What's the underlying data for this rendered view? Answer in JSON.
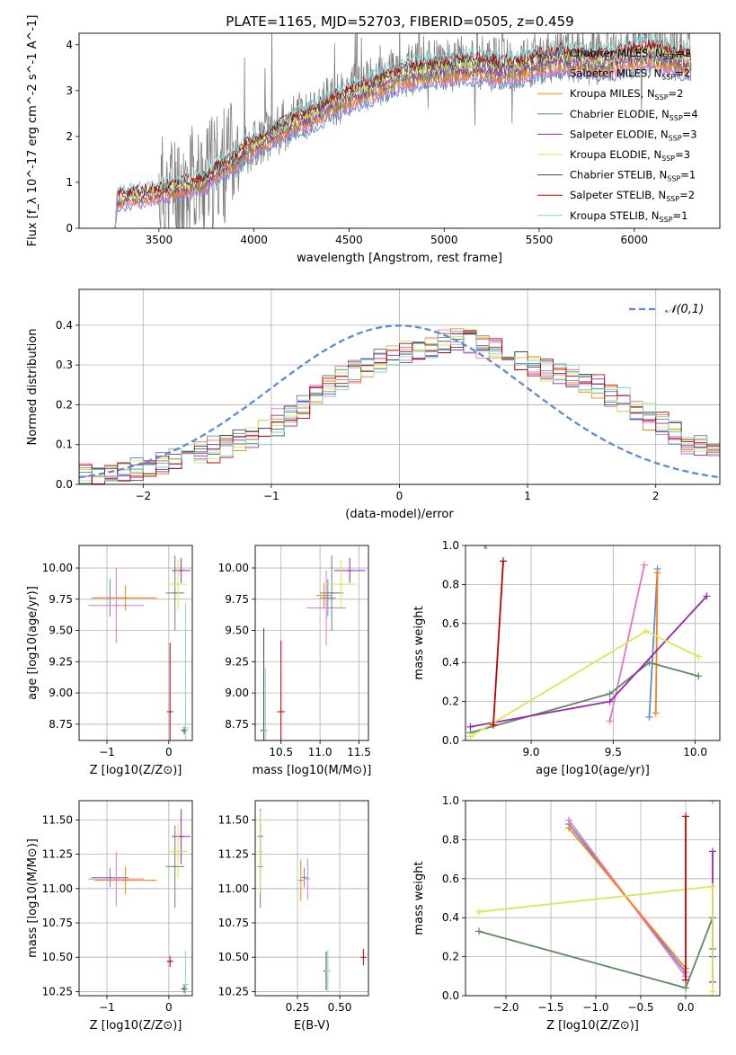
{
  "figure_title": "PLATE=1165, MJD=52703, FIBERID=0505, z=0.459",
  "colors": {
    "Chabrier MILES": "#5b8bd8",
    "Salpeter MILES": "#e377c2",
    "Kroupa MILES": "#ff7f0e",
    "Chabrier ELODIE": "#5e8a5e",
    "Salpeter ELODIE": "#9b27b0",
    "Kroupa ELODIE": "#d4ea55",
    "Chabrier STELIB": "#444444",
    "Salpeter STELIB": "#c00000",
    "Kroupa STELIB": "#7ed6d6",
    "data": "#808080",
    "normal": "#5b8bd8"
  },
  "chart_data": [
    {
      "id": "spectrum",
      "type": "line",
      "title": "PLATE=1165, MJD=52703, FIBERID=0505, z=0.459",
      "xlabel": "wavelength [Angstrom, rest frame]",
      "ylabel": "Flux [f_λ 10^-17 erg cm^-2 s^-1 A^-1]",
      "xlim": [
        3080,
        6450
      ],
      "ylim": [
        0,
        4.25
      ],
      "xticks": [
        3500,
        4000,
        4500,
        5000,
        5500,
        6000
      ],
      "yticks": [
        0,
        1,
        2,
        3,
        4
      ],
      "legend_position": "top-right",
      "legend": [
        "Chabrier MILES, N_SSP=2",
        "Salpeter MILES, N_SSP=2",
        "Kroupa MILES, N_SSP=2",
        "Chabrier ELODIE, N_SSP=4",
        "Salpeter ELODIE, N_SSP=3",
        "Kroupa ELODIE, N_SSP=3",
        "Chabrier STELIB, N_SSP=1",
        "Salpeter STELIB, N_SSP=2",
        "Kroupa STELIB, N_SSP=1"
      ],
      "continuum": {
        "x": [
          3280,
          3350,
          3450,
          3500,
          3600,
          3700,
          3750,
          3800,
          3900,
          3950,
          4000,
          4100,
          4200,
          4300,
          4400,
          4500,
          4600,
          4700,
          4800,
          4900,
          5000,
          5100,
          5200,
          5300,
          5400,
          5500,
          5600,
          5700,
          5800,
          5900,
          6000,
          6100,
          6200,
          6300
        ],
        "y": [
          0.65,
          0.72,
          0.75,
          0.8,
          0.9,
          1.0,
          1.05,
          1.3,
          1.5,
          1.75,
          1.85,
          2.1,
          2.35,
          2.5,
          2.75,
          2.95,
          3.1,
          3.3,
          3.45,
          3.5,
          3.55,
          3.6,
          3.6,
          3.55,
          3.6,
          3.7,
          3.8,
          3.75,
          3.7,
          3.75,
          3.85,
          3.9,
          3.8,
          3.7
        ]
      }
    },
    {
      "id": "residual-hist",
      "type": "line",
      "xlabel": "(data-model)/error",
      "ylabel": "Normed distribution",
      "xlim": [
        -2.5,
        2.5
      ],
      "ylim": [
        0,
        0.49
      ],
      "xticks": [
        -2,
        -1,
        0,
        1,
        2
      ],
      "yticks": [
        0.0,
        0.1,
        0.2,
        0.3,
        0.4
      ],
      "legend_position": "top-right",
      "legend": [
        "𝒩(0,1)"
      ],
      "hist_shape": {
        "x": [
          -2.5,
          -2.0,
          -1.5,
          -1.0,
          -0.5,
          0.0,
          0.5,
          1.0,
          1.5,
          2.0,
          2.5
        ],
        "y": [
          0.02,
          0.04,
          0.08,
          0.14,
          0.26,
          0.33,
          0.37,
          0.3,
          0.25,
          0.16,
          0.07
        ]
      }
    },
    {
      "id": "age-vs-Z",
      "type": "scatter",
      "xlabel": "Z [log10(Z/Z⊙)]",
      "ylabel": "age [log10(age/yr)]",
      "xlim": [
        -1.45,
        0.38
      ],
      "ylim": [
        8.62,
        10.18
      ],
      "xticks": [
        -1,
        0
      ],
      "yticks": [
        8.75,
        9.0,
        9.25,
        9.5,
        9.75,
        10.0
      ],
      "points": [
        {
          "model": "Chabrier MILES",
          "x": -0.95,
          "y": 9.76,
          "xerr": 0.3,
          "yerr": 0.15
        },
        {
          "model": "Salpeter MILES",
          "x": -0.85,
          "y": 9.7,
          "xerr": 0.45,
          "yerr": 0.3
        },
        {
          "model": "Kroupa MILES",
          "x": -0.7,
          "y": 9.76,
          "xerr": 0.5,
          "yerr": 0.1
        },
        {
          "model": "Chabrier ELODIE",
          "x": 0.1,
          "y": 9.8,
          "xerr": 0.15,
          "yerr": 0.3
        },
        {
          "model": "Salpeter ELODIE",
          "x": 0.2,
          "y": 9.98,
          "xerr": 0.15,
          "yerr": 0.1
        },
        {
          "model": "Kroupa ELODIE",
          "x": 0.15,
          "y": 9.87,
          "xerr": 0.15,
          "yerr": 0.2
        },
        {
          "model": "Chabrier STELIB",
          "x": 0.25,
          "y": 8.7,
          "xerr": 0.05,
          "yerr": 0.03
        },
        {
          "model": "Salpeter STELIB",
          "x": 0.02,
          "y": 8.85,
          "xerr": 0.05,
          "yerr": 0.55
        },
        {
          "model": "Kroupa STELIB",
          "x": 0.27,
          "y": 8.72,
          "xerr": 0.05,
          "yerr": 1.0
        }
      ]
    },
    {
      "id": "age-vs-mass",
      "type": "scatter",
      "xlabel": "mass [log10(M/M⊙)]",
      "ylabel": "",
      "xlim": [
        10.17,
        11.62
      ],
      "ylim": [
        8.62,
        10.18
      ],
      "xticks": [
        10.5,
        11.0,
        11.5
      ],
      "yticks": [
        8.75,
        9.0,
        9.25,
        9.5,
        9.75,
        10.0
      ],
      "points": [
        {
          "model": "Chabrier MILES",
          "x": 11.1,
          "y": 9.76,
          "xerr": 0.1,
          "yerr": 0.15
        },
        {
          "model": "Salpeter MILES",
          "x": 11.08,
          "y": 9.68,
          "xerr": 0.25,
          "yerr": 0.3
        },
        {
          "model": "Kroupa MILES",
          "x": 11.05,
          "y": 9.78,
          "xerr": 0.1,
          "yerr": 0.1
        },
        {
          "model": "Chabrier ELODIE",
          "x": 11.15,
          "y": 9.8,
          "xerr": 0.15,
          "yerr": 0.3
        },
        {
          "model": "Salpeter ELODIE",
          "x": 11.38,
          "y": 9.98,
          "xerr": 0.2,
          "yerr": 0.1
        },
        {
          "model": "Kroupa ELODIE",
          "x": 11.27,
          "y": 9.87,
          "xerr": 0.2,
          "yerr": 0.2
        },
        {
          "model": "Chabrier STELIB",
          "x": 10.28,
          "y": 8.7,
          "xerr": 0.04,
          "yerr": 0.82
        },
        {
          "model": "Salpeter STELIB",
          "x": 10.5,
          "y": 8.85,
          "xerr": 0.05,
          "yerr": 0.57
        },
        {
          "model": "Kroupa STELIB",
          "x": 10.3,
          "y": 8.7,
          "xerr": 0.03,
          "yerr": 0.5
        }
      ]
    },
    {
      "id": "weight-vs-age",
      "type": "line",
      "xlabel": "age [log10(age/yr)]",
      "ylabel": "mass weight",
      "xlim": [
        8.6,
        10.15
      ],
      "ylim": [
        0,
        1.0
      ],
      "xticks": [
        9.0,
        9.5,
        10.0
      ],
      "yticks": [
        0.0,
        0.2,
        0.4,
        0.6,
        0.8,
        1.0
      ],
      "series": [
        {
          "model": "Chabrier MILES",
          "x": [
            9.72,
            9.77
          ],
          "y": [
            0.12,
            0.88
          ]
        },
        {
          "model": "Salpeter MILES",
          "x": [
            9.48,
            9.69
          ],
          "y": [
            0.1,
            0.9
          ]
        },
        {
          "model": "Kroupa MILES",
          "x": [
            9.76,
            9.77
          ],
          "y": [
            0.14,
            0.86
          ]
        },
        {
          "model": "Chabrier ELODIE",
          "x": [
            8.63,
            9.48,
            9.72,
            10.02
          ],
          "y": [
            0.04,
            0.24,
            0.4,
            0.33
          ]
        },
        {
          "model": "Salpeter ELODIE",
          "x": [
            8.63,
            9.48,
            10.07
          ],
          "y": [
            0.07,
            0.2,
            0.74
          ]
        },
        {
          "model": "Kroupa ELODIE",
          "x": [
            8.63,
            9.7,
            10.02
          ],
          "y": [
            0.02,
            0.56,
            0.43
          ]
        },
        {
          "model": "Chabrier STELIB",
          "x": [
            8.72
          ],
          "y": [
            1.0
          ]
        },
        {
          "model": "Salpeter STELIB",
          "x": [
            8.77,
            8.83
          ],
          "y": [
            0.08,
            0.92
          ]
        },
        {
          "model": "Kroupa STELIB",
          "x": [
            8.73
          ],
          "y": [
            1.0
          ]
        }
      ]
    },
    {
      "id": "mass-vs-Z",
      "type": "scatter",
      "xlabel": "Z [log10(Z/Z⊙)]",
      "ylabel": "mass [log10(M/M⊙)]",
      "xlim": [
        -1.45,
        0.38
      ],
      "ylim": [
        10.22,
        11.64
      ],
      "xticks": [
        -1,
        0
      ],
      "yticks": [
        10.25,
        10.5,
        10.75,
        11.0,
        11.25,
        11.5
      ],
      "points": [
        {
          "model": "Chabrier MILES",
          "x": -0.95,
          "y": 11.08,
          "xerr": 0.3,
          "yerr": 0.07
        },
        {
          "model": "Salpeter MILES",
          "x": -0.85,
          "y": 11.07,
          "xerr": 0.45,
          "yerr": 0.2
        },
        {
          "model": "Kroupa MILES",
          "x": -0.7,
          "y": 11.06,
          "xerr": 0.5,
          "yerr": 0.1
        },
        {
          "model": "Chabrier ELODIE",
          "x": 0.1,
          "y": 11.16,
          "xerr": 0.15,
          "yerr": 0.3
        },
        {
          "model": "Salpeter ELODIE",
          "x": 0.2,
          "y": 11.38,
          "xerr": 0.15,
          "yerr": 0.2
        },
        {
          "model": "Kroupa ELODIE",
          "x": 0.15,
          "y": 11.27,
          "xerr": 0.15,
          "yerr": 0.2
        },
        {
          "model": "Chabrier STELIB",
          "x": 0.25,
          "y": 10.27,
          "xerr": 0.05,
          "yerr": 0.03
        },
        {
          "model": "Salpeter STELIB",
          "x": 0.02,
          "y": 10.47,
          "xerr": 0.05,
          "yerr": 0.04
        },
        {
          "model": "Kroupa STELIB",
          "x": 0.27,
          "y": 10.3,
          "xerr": 0.05,
          "yerr": 0.25
        }
      ]
    },
    {
      "id": "mass-vs-ebv",
      "type": "scatter",
      "xlabel": "E(B-V)",
      "ylabel": "",
      "xlim": [
        0.0,
        0.67
      ],
      "ylim": [
        10.22,
        11.64
      ],
      "xticks": [
        0.25,
        0.5
      ],
      "yticks": [
        10.25,
        10.5,
        10.75,
        11.0,
        11.25,
        11.5
      ],
      "points": [
        {
          "model": "Chabrier MILES",
          "x": 0.29,
          "y": 11.08,
          "yerr": 0.07
        },
        {
          "model": "Salpeter MILES",
          "x": 0.31,
          "y": 11.07,
          "yerr": 0.15
        },
        {
          "model": "Kroupa MILES",
          "x": 0.27,
          "y": 11.06,
          "yerr": 0.15
        },
        {
          "model": "Chabrier ELODIE",
          "x": 0.03,
          "y": 11.16,
          "yerr": 0.3
        },
        {
          "model": "Salpeter ELODIE",
          "x": 0.03,
          "y": 11.38,
          "yerr": 0.2
        },
        {
          "model": "Kroupa ELODIE",
          "x": 0.03,
          "y": 11.27,
          "yerr": 0.3
        },
        {
          "model": "Chabrier STELIB",
          "x": 0.42,
          "y": 10.4,
          "yerr": 0.14
        },
        {
          "model": "Salpeter STELIB",
          "x": 0.64,
          "y": 10.5,
          "yerr": 0.06
        },
        {
          "model": "Kroupa STELIB",
          "x": 0.43,
          "y": 10.4,
          "yerr": 0.15
        }
      ]
    },
    {
      "id": "weight-vs-Z",
      "type": "line",
      "xlabel": "Z [log10(Z/Z⊙)]",
      "ylabel": "mass weight",
      "xlim": [
        -2.45,
        0.38
      ],
      "ylim": [
        0,
        1.0
      ],
      "xticks": [
        -2.0,
        -1.5,
        -1.0,
        -0.5,
        0.0
      ],
      "yticks": [
        0.0,
        0.2,
        0.4,
        0.6,
        0.8,
        1.0
      ],
      "series": [
        {
          "model": "Chabrier MILES",
          "x": [
            -1.3,
            0.0
          ],
          "y": [
            0.88,
            0.12
          ]
        },
        {
          "model": "Salpeter MILES",
          "x": [
            -1.3,
            0.0
          ],
          "y": [
            0.9,
            0.1
          ]
        },
        {
          "model": "Kroupa MILES",
          "x": [
            -1.3,
            0.0
          ],
          "y": [
            0.86,
            0.14
          ]
        },
        {
          "model": "Chabrier ELODIE",
          "x": [
            -2.3,
            0.0,
            0.3,
            0.3
          ],
          "y": [
            0.33,
            0.04,
            0.4,
            0.24
          ]
        },
        {
          "model": "Salpeter ELODIE",
          "x": [
            0.3,
            0.3,
            0.3
          ],
          "y": [
            0.74,
            0.07,
            0.2
          ]
        },
        {
          "model": "Kroupa ELODIE",
          "x": [
            -2.3,
            0.3,
            0.3
          ],
          "y": [
            0.43,
            0.56,
            0.02
          ]
        },
        {
          "model": "Chabrier STELIB",
          "x": [
            0.3
          ],
          "y": [
            1.0
          ]
        },
        {
          "model": "Salpeter STELIB",
          "x": [
            0.0,
            0.0
          ],
          "y": [
            0.08,
            0.92
          ]
        },
        {
          "model": "Kroupa STELIB",
          "x": [
            0.3
          ],
          "y": [
            1.0
          ]
        }
      ]
    }
  ]
}
